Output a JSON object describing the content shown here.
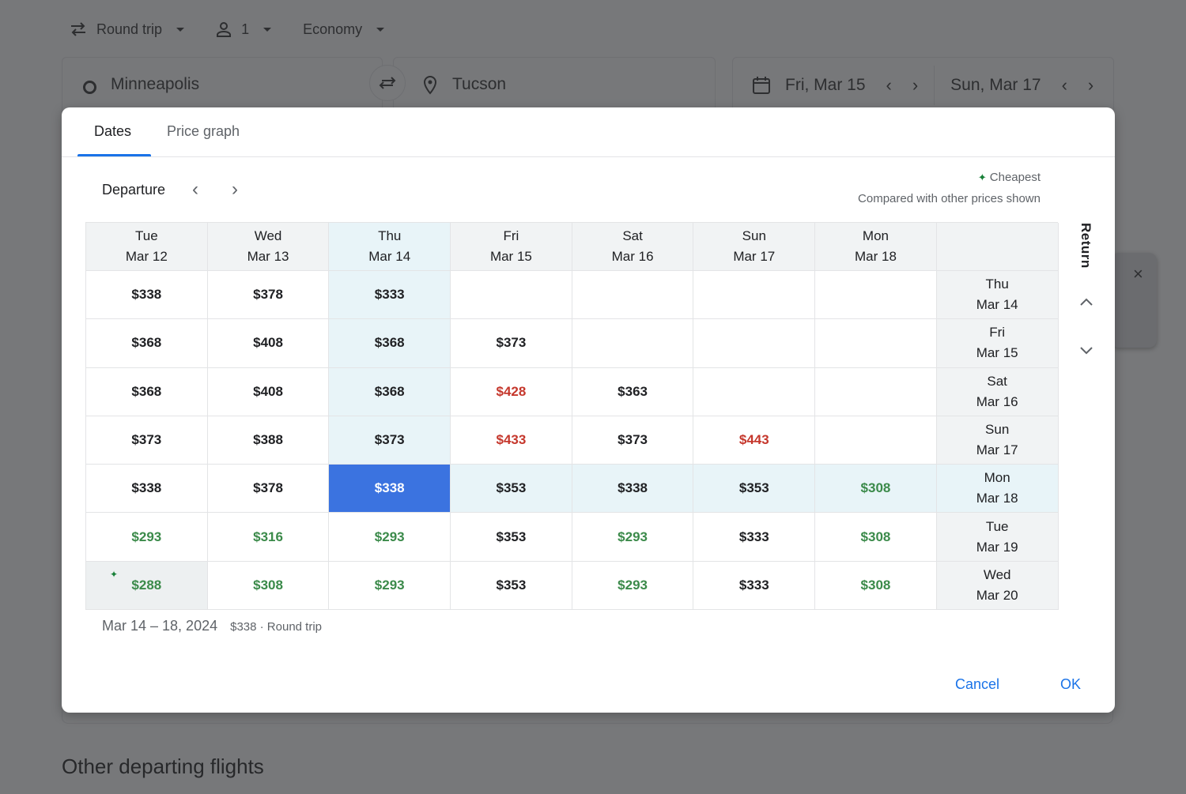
{
  "search": {
    "trip_type": "Round trip",
    "passengers": "1",
    "cabin_class": "Economy",
    "origin": "Minneapolis",
    "destination": "Tucson",
    "departure_date": "Fri, Mar 15",
    "return_date": "Sun, Mar 17"
  },
  "dialog": {
    "tabs": [
      {
        "label": "Dates",
        "active": true
      },
      {
        "label": "Price graph",
        "active": false
      }
    ],
    "departure_label": "Departure",
    "legend": {
      "cheapest_label": "Cheapest",
      "compared_label": "Compared with other prices shown"
    },
    "return_label": "Return",
    "columns": [
      {
        "day": "Tue",
        "date": "Mar 12"
      },
      {
        "day": "Wed",
        "date": "Mar 13"
      },
      {
        "day": "Thu",
        "date": "Mar 14"
      },
      {
        "day": "Fri",
        "date": "Mar 15"
      },
      {
        "day": "Sat",
        "date": "Mar 16"
      },
      {
        "day": "Sun",
        "date": "Mar 17"
      },
      {
        "day": "Mon",
        "date": "Mar 18"
      }
    ],
    "rows": [
      {
        "day": "Thu",
        "date": "Mar 14",
        "prices": [
          "$338",
          "$378",
          "$333",
          "",
          "",
          "",
          ""
        ],
        "colors": [
          "n",
          "n",
          "n",
          "n",
          "n",
          "n",
          "n"
        ]
      },
      {
        "day": "Fri",
        "date": "Mar 15",
        "prices": [
          "$368",
          "$408",
          "$368",
          "$373",
          "",
          "",
          ""
        ],
        "colors": [
          "n",
          "n",
          "n",
          "n",
          "n",
          "n",
          "n"
        ]
      },
      {
        "day": "Sat",
        "date": "Mar 16",
        "prices": [
          "$368",
          "$408",
          "$368",
          "$428",
          "$363",
          "",
          ""
        ],
        "colors": [
          "n",
          "n",
          "n",
          "r",
          "n",
          "n",
          "n"
        ]
      },
      {
        "day": "Sun",
        "date": "Mar 17",
        "prices": [
          "$373",
          "$388",
          "$373",
          "$433",
          "$373",
          "$443",
          ""
        ],
        "colors": [
          "n",
          "n",
          "n",
          "r",
          "n",
          "r",
          "n"
        ]
      },
      {
        "day": "Mon",
        "date": "Mar 18",
        "prices": [
          "$338",
          "$378",
          "$338",
          "$353",
          "$338",
          "$353",
          "$308"
        ],
        "colors": [
          "n",
          "n",
          "n",
          "n",
          "n",
          "n",
          "g"
        ]
      },
      {
        "day": "Tue",
        "date": "Mar 19",
        "prices": [
          "$293",
          "$316",
          "$293",
          "$353",
          "$293",
          "$333",
          "$308"
        ],
        "colors": [
          "g",
          "g",
          "g",
          "n",
          "g",
          "n",
          "g"
        ]
      },
      {
        "day": "Wed",
        "date": "Mar 20",
        "prices": [
          "$288",
          "$308",
          "$293",
          "$353",
          "$293",
          "$333",
          "$308"
        ],
        "colors": [
          "g",
          "g",
          "g",
          "n",
          "g",
          "n",
          "g"
        ]
      }
    ],
    "selected": {
      "row": 4,
      "col": 2
    },
    "cheapest": {
      "row": 6,
      "col": 0
    },
    "summary": {
      "date_range": "Mar 14 – 18, 2024",
      "price_info": "$338 · Round trip"
    },
    "cancel_label": "Cancel",
    "ok_label": "OK"
  },
  "background": {
    "section_heading": "Other departing flights"
  },
  "colors": {
    "accent": "#1a73e8",
    "selected": "#3b73e0",
    "highlight": "#e8f4f8",
    "cheap_green": "#3b8a4a",
    "expensive_red": "#c5372c"
  }
}
